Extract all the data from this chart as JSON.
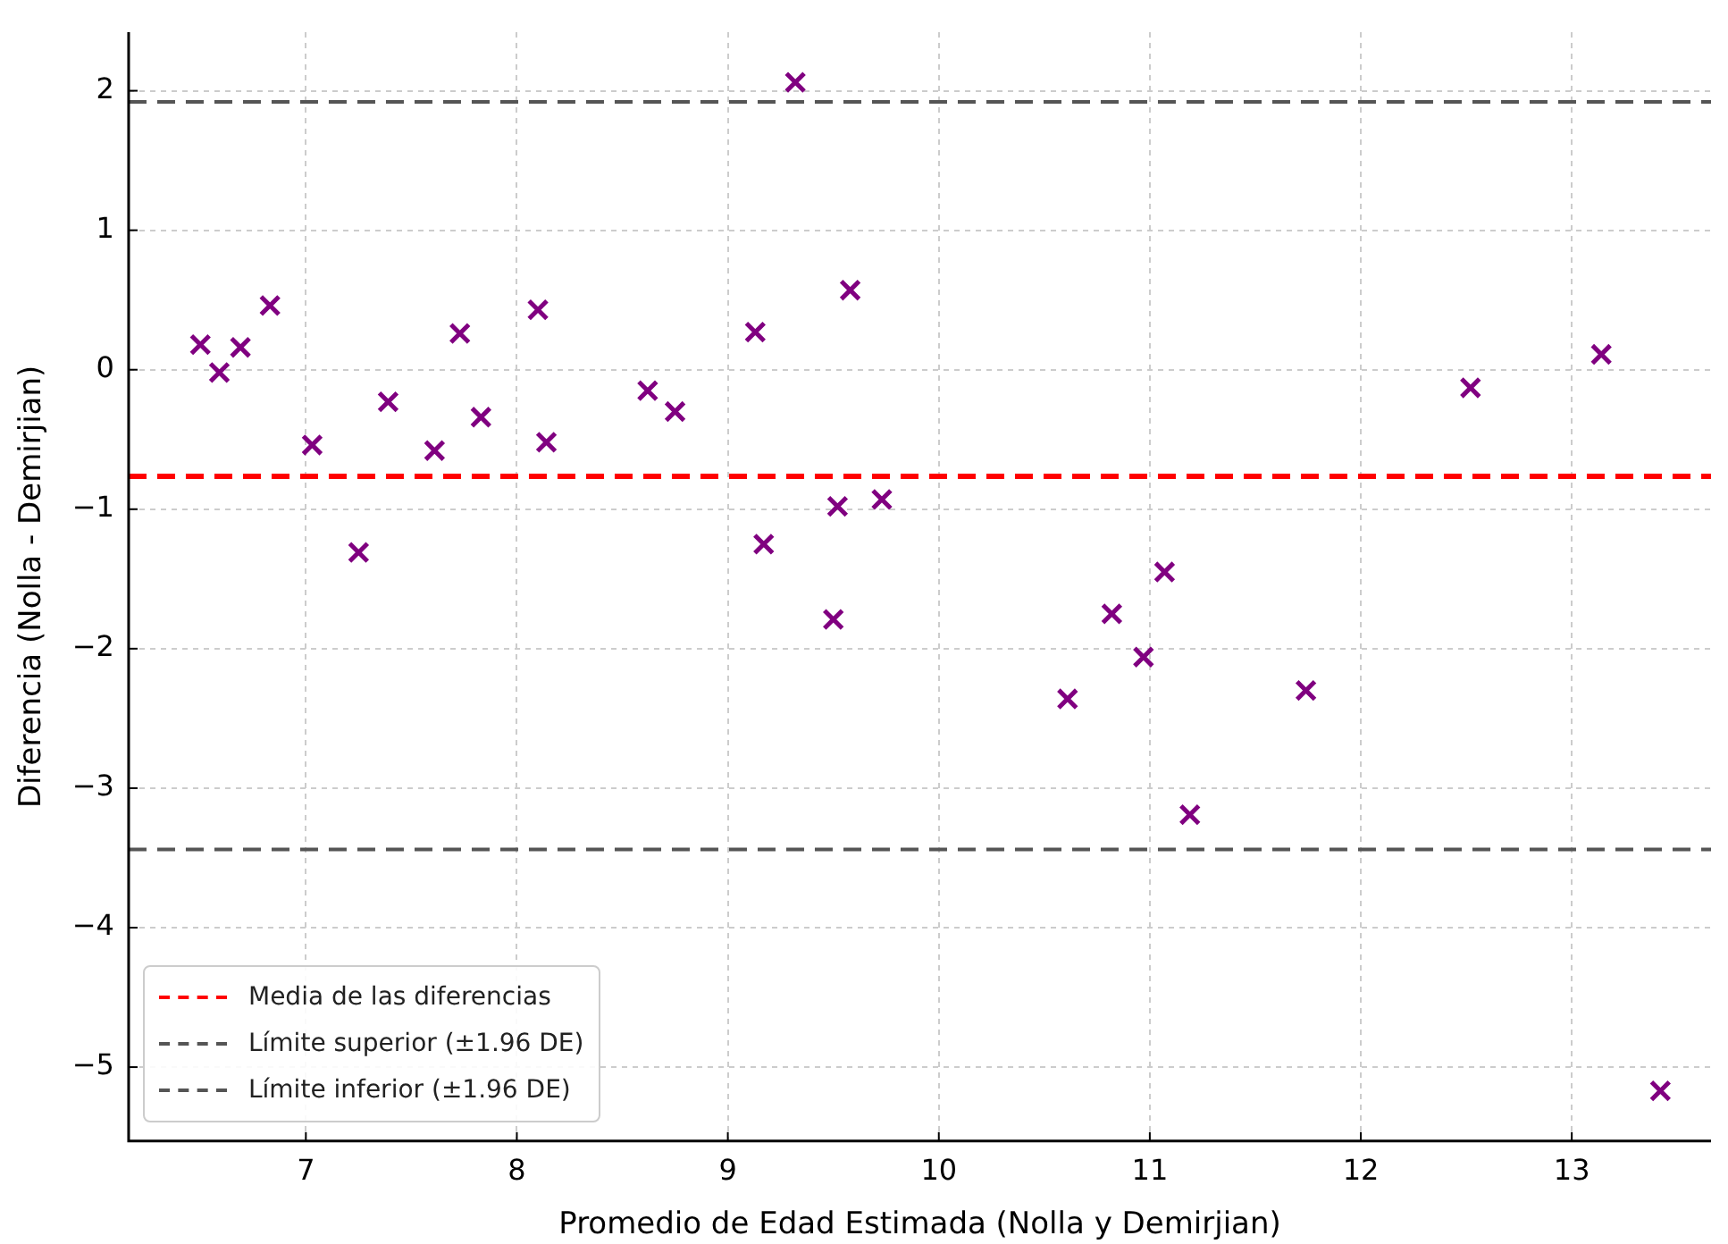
{
  "chart_data": {
    "type": "scatter",
    "xlabel": "Promedio de Edad Estimada (Nolla y Demirjian)",
    "ylabel": "Diferencia (Nolla - Demirjian)",
    "xlim": [
      6.16,
      13.66
    ],
    "ylim": [
      -5.53,
      2.42
    ],
    "xticks": [
      7,
      8,
      9,
      10,
      11,
      12,
      13
    ],
    "yticks": [
      -5,
      -4,
      -3,
      -2,
      -1,
      0,
      1,
      2
    ],
    "grid": true,
    "legend": "bottom left",
    "marker": "cross",
    "series": [
      {
        "color": "#800080",
        "x": [
          6.5,
          6.59,
          6.69,
          6.83,
          7.03,
          7.25,
          7.39,
          7.61,
          7.73,
          7.83,
          8.1,
          8.14,
          8.62,
          8.75,
          9.13,
          9.17,
          9.32,
          9.5,
          9.52,
          9.58,
          9.73,
          10.61,
          10.82,
          10.97,
          11.07,
          11.19,
          11.74,
          12.52,
          13.14,
          13.42
        ],
        "values": [
          0.18,
          -0.02,
          0.16,
          0.46,
          -0.54,
          -1.31,
          -0.23,
          -0.58,
          0.26,
          -0.34,
          0.43,
          -0.52,
          -0.15,
          -0.3,
          0.27,
          -1.25,
          2.06,
          -1.79,
          -0.98,
          0.57,
          -0.93,
          -2.36,
          -1.75,
          -2.06,
          -1.45,
          -3.19,
          -2.3,
          -0.13,
          0.11,
          -5.17
        ]
      }
    ],
    "ref_lines": [
      {
        "axis": "y",
        "value": -0.765,
        "label": "Media de las diferencias",
        "color": "#ff0000",
        "line_style": "dashed"
      },
      {
        "axis": "y",
        "value": 1.92,
        "label": "Límite superior (±1.96 DE)",
        "color": "#555555",
        "line_style": "dashed"
      },
      {
        "axis": "y",
        "value": -3.44,
        "label": "Límite inferior (±1.96 DE)",
        "color": "#555555",
        "line_style": "dashed"
      }
    ]
  }
}
